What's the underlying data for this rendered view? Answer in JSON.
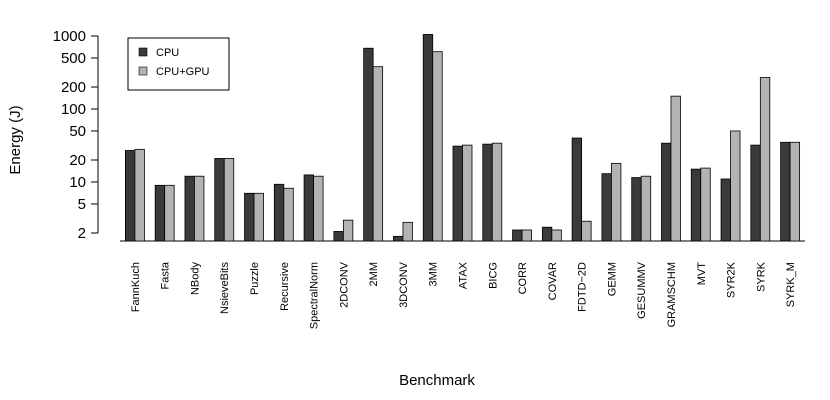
{
  "chart_data": {
    "type": "bar",
    "title": "",
    "xlabel": "Benchmark",
    "ylabel": "Energy (J)",
    "y_scale": "log",
    "ylim": [
      1.6,
      1100
    ],
    "yticks": [
      2,
      5,
      10,
      20,
      50,
      100,
      200,
      500,
      1000
    ],
    "ytick_labels": [
      "2",
      "5",
      "10",
      "20",
      "50",
      "100",
      "200",
      "500",
      "1000"
    ],
    "grid": false,
    "legend_position": "top-left",
    "categories": [
      "FannKuch",
      "Fasta",
      "NBody",
      "NsieveBits",
      "Puzzle",
      "Recursive",
      "SpectralNorm",
      "2DCONV",
      "2MM",
      "3DCONV",
      "3MM",
      "ATAX",
      "BICG",
      "CORR",
      "COVAR",
      "FDTD−2D",
      "GEMM",
      "GESUMMV",
      "GRAMSCHM",
      "MVT",
      "SYR2K",
      "SYRK",
      "SYRK_M"
    ],
    "series": [
      {
        "name": "CPU",
        "color": "#3a3a3a",
        "values": [
          27,
          9,
          12,
          21,
          7,
          9.3,
          12.5,
          2.1,
          680,
          1.8,
          1050,
          31,
          33,
          2.2,
          2.4,
          40,
          13,
          11.5,
          34,
          15,
          11,
          32,
          35
        ]
      },
      {
        "name": "CPU+GPU",
        "color": "#b3b3b3",
        "values": [
          28,
          9,
          12,
          21,
          7,
          8.2,
          12,
          3,
          380,
          2.8,
          610,
          32,
          34,
          2.2,
          2.2,
          2.9,
          18,
          12,
          150,
          15.5,
          50,
          270,
          35
        ]
      }
    ]
  }
}
